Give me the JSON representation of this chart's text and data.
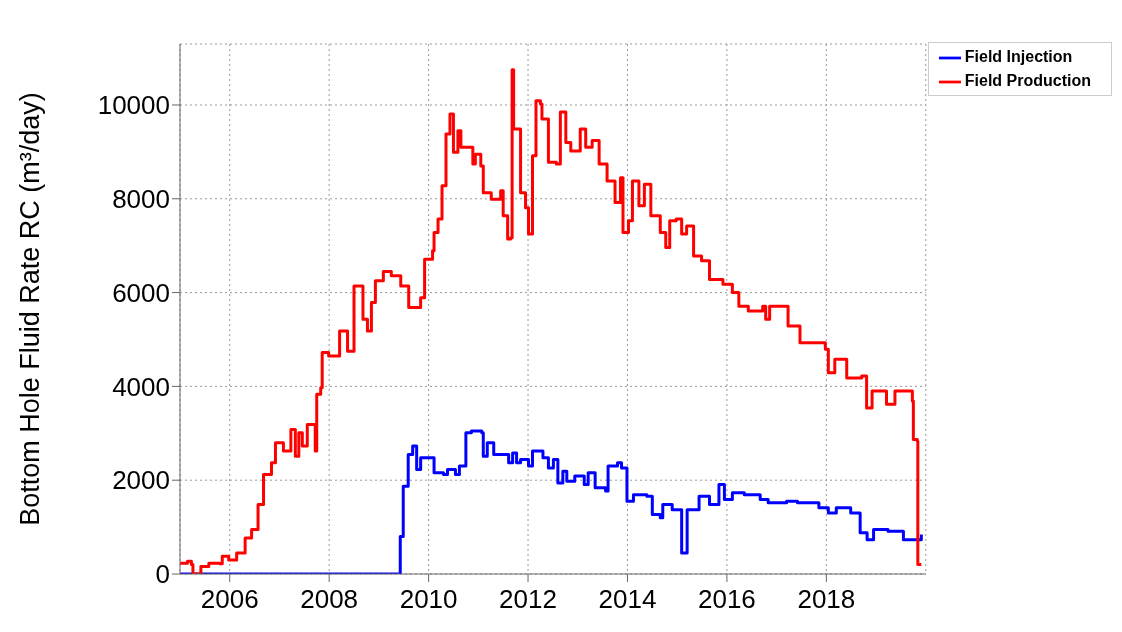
{
  "chart_data": {
    "type": "step",
    "ylabel": "Bottom Hole Fluid Rate RC (m³/day)",
    "xlim": [
      2005,
      2020
    ],
    "xticks": [
      2006,
      2008,
      2010,
      2012,
      2014,
      2016,
      2018
    ],
    "ylim": [
      0,
      11300
    ],
    "yticks": [
      0,
      2000,
      4000,
      6000,
      8000,
      10000
    ],
    "grid": true,
    "legend": "top right",
    "line_style": "solid",
    "marker": "none",
    "series": [
      {
        "name": "Field Injection",
        "color": "#0000ff",
        "x": [
          2005.0,
          2009.41,
          2009.43,
          2009.49,
          2009.59,
          2009.68,
          2009.76,
          2009.84,
          2009.97,
          2010.11,
          2010.3,
          2010.38,
          2010.54,
          2010.62,
          2010.75,
          2010.86,
          2011.07,
          2011.1,
          2011.18,
          2011.31,
          2011.61,
          2011.69,
          2011.77,
          2011.85,
          2012.01,
          2012.09,
          2012.3,
          2012.41,
          2012.51,
          2012.6,
          2012.7,
          2012.78,
          2012.94,
          2013.13,
          2013.21,
          2013.35,
          2013.56,
          2013.61,
          2013.8,
          2013.88,
          2013.99,
          2014.12,
          2014.39,
          2014.5,
          2014.66,
          2014.71,
          2014.9,
          2015.09,
          2015.2,
          2015.44,
          2015.65,
          2015.84,
          2015.95,
          2016.11,
          2016.35,
          2016.67,
          2016.83,
          2017.2,
          2017.42,
          2017.85,
          2018.04,
          2018.2,
          2018.49,
          2018.68,
          2018.82,
          2018.95,
          2019.24,
          2019.55,
          2019.91
        ],
        "values": [
          0,
          0,
          800,
          1870,
          2550,
          2730,
          2230,
          2480,
          2480,
          2160,
          2120,
          2230,
          2120,
          2300,
          3010,
          3050,
          3010,
          2510,
          2800,
          2550,
          2370,
          2580,
          2370,
          2440,
          2300,
          2620,
          2480,
          2260,
          2440,
          1940,
          2190,
          1980,
          2090,
          1910,
          2160,
          1840,
          1770,
          2300,
          2370,
          2260,
          1550,
          1690,
          1660,
          1270,
          1200,
          1480,
          1370,
          450,
          1370,
          1660,
          1480,
          1910,
          1590,
          1730,
          1690,
          1590,
          1520,
          1550,
          1520,
          1410,
          1300,
          1410,
          1300,
          880,
          730,
          950,
          910,
          730,
          840
        ]
      },
      {
        "name": "Field Production",
        "color": "#ff0000",
        "x": [
          2005.0,
          2005.15,
          2005.23,
          2005.26,
          2005.41,
          2005.42,
          2005.58,
          2005.8,
          2005.85,
          2005.98,
          2006.14,
          2006.31,
          2006.44,
          2006.57,
          2006.68,
          2006.84,
          2006.92,
          2007.08,
          2007.23,
          2007.32,
          2007.39,
          2007.46,
          2007.56,
          2007.72,
          2007.75,
          2007.83,
          2007.86,
          2007.99,
          2008.21,
          2008.37,
          2008.5,
          2008.68,
          2008.77,
          2008.85,
          2008.93,
          2009.09,
          2009.25,
          2009.44,
          2009.6,
          2009.84,
          2009.92,
          2010.08,
          2010.11,
          2010.19,
          2010.27,
          2010.35,
          2010.43,
          2010.5,
          2010.59,
          2010.65,
          2010.89,
          2010.94,
          2011.05,
          2011.1,
          2011.26,
          2011.45,
          2011.5,
          2011.59,
          2011.65,
          2011.68,
          2011.71,
          2011.85,
          2011.95,
          2012.01,
          2012.09,
          2012.16,
          2012.25,
          2012.28,
          2012.41,
          2012.57,
          2012.65,
          2012.76,
          2012.86,
          2013.05,
          2013.16,
          2013.29,
          2013.43,
          2013.59,
          2013.75,
          2013.86,
          2013.91,
          2014.02,
          2014.1,
          2014.23,
          2014.34,
          2014.47,
          2014.66,
          2014.77,
          2014.85,
          2014.98,
          2015.09,
          2015.19,
          2015.33,
          2015.49,
          2015.65,
          2015.92,
          2016.11,
          2016.24,
          2016.43,
          2016.72,
          2016.78,
          2016.86,
          2017.23,
          2017.47,
          2017.85,
          2017.98,
          2018.04,
          2018.17,
          2018.41,
          2018.71,
          2018.81,
          2018.92,
          2019.16,
          2019.21,
          2019.38,
          2019.73,
          2019.75,
          2019.83,
          2019.84,
          2019.91
        ],
        "values": [
          230,
          270,
          200,
          0,
          0,
          160,
          230,
          220,
          380,
          300,
          450,
          770,
          950,
          1480,
          2120,
          2370,
          2800,
          2620,
          3080,
          2510,
          3010,
          2730,
          3190,
          2620,
          3830,
          3970,
          4720,
          4650,
          5180,
          4750,
          6140,
          5430,
          5180,
          5790,
          6250,
          6450,
          6360,
          6140,
          5680,
          5890,
          6710,
          6890,
          7280,
          7570,
          8280,
          9380,
          9810,
          8990,
          9450,
          9100,
          8740,
          8950,
          8700,
          8130,
          7990,
          8170,
          7640,
          7140,
          7170,
          10750,
          9490,
          8130,
          7810,
          7250,
          8920,
          10090,
          10020,
          9700,
          8780,
          8740,
          9850,
          9200,
          9020,
          9490,
          9100,
          9240,
          8740,
          8380,
          7920,
          8450,
          7280,
          7530,
          8380,
          7850,
          8310,
          7640,
          7280,
          6960,
          7530,
          7570,
          7250,
          7420,
          6780,
          6680,
          6280,
          6180,
          6000,
          5710,
          5610,
          5710,
          5430,
          5710,
          5290,
          4930,
          4930,
          4790,
          4290,
          4580,
          4180,
          4220,
          3540,
          3900,
          3900,
          3620,
          3900,
          3690,
          2870,
          2830,
          200,
          200
        ]
      }
    ]
  }
}
